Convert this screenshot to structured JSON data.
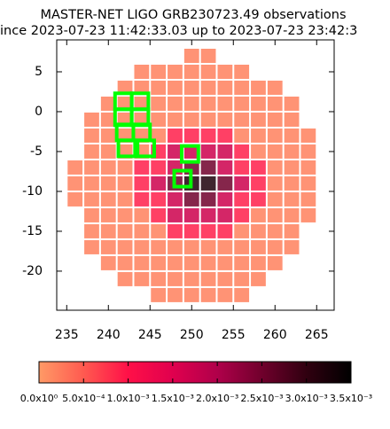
{
  "chart_data": {
    "type": "heatmap",
    "title": "MASTER-NET LIGO GRB230723.49 observations",
    "subtitle": "ince 2023-07-23 11:42:33.03 up to 2023-07-23 23:42:3",
    "x": [
      236,
      238,
      240,
      242,
      244,
      246,
      248,
      250,
      252,
      254,
      256,
      258,
      260,
      262,
      264
    ],
    "y": [
      7,
      5,
      3,
      1,
      -1,
      -3,
      -5,
      -7,
      -9,
      -11,
      -13,
      -15,
      -17,
      -19,
      -21,
      -23
    ],
    "values": [
      [
        null,
        null,
        null,
        null,
        null,
        null,
        null,
        0.0002,
        0.0002,
        null,
        null,
        null,
        null,
        null,
        null
      ],
      [
        null,
        null,
        null,
        null,
        0.0002,
        0.0002,
        0.0002,
        0.0002,
        0.0002,
        0.0002,
        0.0002,
        null,
        null,
        null,
        null
      ],
      [
        null,
        null,
        null,
        0.0002,
        0.0002,
        0.0002,
        0.0002,
        0.0002,
        0.0002,
        0.0002,
        0.0002,
        0.0002,
        0.0002,
        null,
        null
      ],
      [
        null,
        null,
        0.0002,
        0.0002,
        0.0002,
        0.0002,
        0.0002,
        0.0002,
        0.0002,
        0.0002,
        0.0002,
        0.0002,
        0.0002,
        0.0002,
        null
      ],
      [
        null,
        0.0002,
        0.0002,
        0.0002,
        0.0002,
        0.0002,
        0.0002,
        0.0002,
        0.0002,
        0.0002,
        0.0002,
        0.0002,
        0.0002,
        0.0002,
        null
      ],
      [
        null,
        0.0002,
        0.0002,
        0.0002,
        0.0002,
        0.0002,
        0.0009,
        0.0009,
        0.0009,
        0.0009,
        0.0002,
        0.0002,
        0.0002,
        0.0002,
        0.0002
      ],
      [
        null,
        0.0002,
        0.0002,
        0.0002,
        0.0002,
        0.0009,
        0.0017,
        0.0017,
        0.0017,
        0.0017,
        0.0009,
        0.0002,
        0.0002,
        0.0002,
        0.0002
      ],
      [
        0.0002,
        0.0002,
        0.0002,
        0.0002,
        0.0009,
        0.0009,
        0.0017,
        0.0025,
        0.0025,
        0.0017,
        0.0009,
        0.0009,
        0.0002,
        0.0002,
        0.0002
      ],
      [
        0.0002,
        0.0002,
        0.0002,
        0.0002,
        0.0009,
        0.0017,
        0.0025,
        0.0032,
        0.0032,
        0.0025,
        0.0017,
        0.0009,
        0.0002,
        0.0002,
        0.0002
      ],
      [
        0.0002,
        0.0002,
        0.0002,
        0.0002,
        0.0009,
        0.0009,
        0.0017,
        0.0025,
        0.0025,
        0.0017,
        0.0009,
        0.0009,
        0.0002,
        0.0002,
        0.0002
      ],
      [
        null,
        0.0002,
        0.0002,
        0.0002,
        0.0002,
        0.0009,
        0.0017,
        0.0017,
        0.0017,
        0.0017,
        0.0009,
        0.0002,
        0.0002,
        0.0002,
        0.0002
      ],
      [
        null,
        0.0002,
        0.0002,
        0.0002,
        0.0002,
        0.0002,
        0.0009,
        0.0009,
        0.0009,
        0.0009,
        0.0002,
        0.0002,
        0.0002,
        0.0002,
        null
      ],
      [
        null,
        0.0002,
        0.0002,
        0.0002,
        0.0002,
        0.0002,
        0.0002,
        0.0002,
        0.0002,
        0.0002,
        0.0002,
        0.0002,
        0.0002,
        0.0002,
        null
      ],
      [
        null,
        null,
        0.0002,
        0.0002,
        0.0002,
        0.0002,
        0.0002,
        0.0002,
        0.0002,
        0.0002,
        0.0002,
        0.0002,
        0.0002,
        null,
        null
      ],
      [
        null,
        null,
        null,
        0.0002,
        0.0002,
        0.0002,
        0.0002,
        0.0002,
        0.0002,
        0.0002,
        0.0002,
        0.0002,
        null,
        null,
        null
      ],
      [
        null,
        null,
        null,
        null,
        null,
        0.0002,
        0.0002,
        0.0002,
        0.0002,
        0.0002,
        0.0002,
        null,
        null,
        null,
        null
      ]
    ],
    "xlim": [
      233.8,
      267.1
    ],
    "ylim": [
      -24.9,
      9
    ],
    "xticks": [
      235,
      240,
      245,
      250,
      255,
      260,
      265
    ],
    "yticks": [
      5,
      0,
      -5,
      -10,
      -15,
      -20
    ],
    "colorscale": [
      "#ff9a66",
      "#ff5a50",
      "#ff1048",
      "#e0004e",
      "#b0004a",
      "#70002c",
      "#300010",
      "#000000"
    ],
    "clim": [
      0,
      0.0035
    ],
    "cticks": [
      {
        "value": 0,
        "label": "0.0x10⁰"
      },
      {
        "value": 0.0005,
        "label": "5.0x10⁻⁴"
      },
      {
        "value": 0.001,
        "label": "1.0x10⁻³"
      },
      {
        "value": 0.0015,
        "label": "1.5x10⁻³"
      },
      {
        "value": 0.002,
        "label": "2.0x10⁻³"
      },
      {
        "value": 0.0025,
        "label": "2.5x10⁻³"
      },
      {
        "value": 0.003,
        "label": "3.0x10⁻³"
      },
      {
        "value": 0.0035,
        "label": "3.5x10⁻³"
      }
    ],
    "fields": {
      "color": "#00ff00",
      "size": 2,
      "x": [
        241.8,
        243.8,
        241.8,
        243.8,
        242,
        244,
        242.2,
        244.5,
        249.8,
        248.9
      ],
      "y": [
        1.3,
        1.3,
        -0.7,
        -0.7,
        -2.6,
        -2.6,
        -4.6,
        -4.6,
        -5.3,
        -8.4
      ]
    }
  }
}
